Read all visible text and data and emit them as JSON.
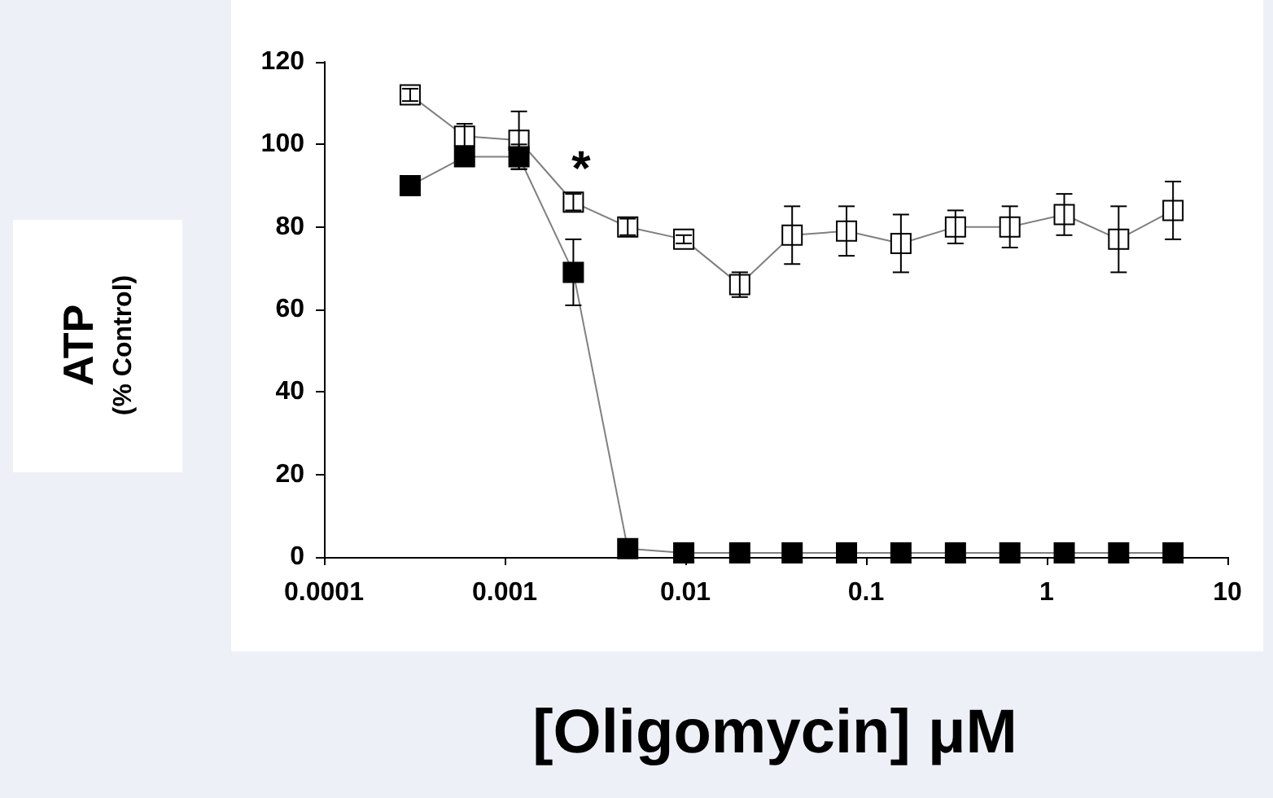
{
  "chart_data": {
    "type": "line",
    "xlabel": "[Oligomycin] μM",
    "ylabel": "ATP",
    "subtitle": "(% Control)",
    "log": "x",
    "xlim": [
      0.0001,
      10
    ],
    "xticks": [
      0.0001,
      0.001,
      0.01,
      0.1,
      1,
      10
    ],
    "ylim": [
      0,
      120
    ],
    "yticks": [
      0,
      20,
      40,
      60,
      80,
      100,
      120
    ],
    "grid": false,
    "marker": "square",
    "line_style": "solid",
    "annotations": [
      "*"
    ],
    "series": [
      {
        "color": "#ffffff",
        "x": [
          0.0003,
          0.0006,
          0.0012,
          0.0024,
          0.0048,
          0.0098,
          0.02,
          0.039,
          0.078,
          0.156,
          0.3125,
          0.625,
          1.25,
          2.5,
          5
        ],
        "values": [
          112,
          102,
          101,
          86,
          80,
          77,
          66,
          78,
          79,
          76,
          80,
          80,
          83,
          77,
          84
        ],
        "errors": [
          1.5,
          3,
          7,
          2,
          2,
          1,
          3,
          7,
          6,
          7,
          4,
          5,
          5,
          8,
          7
        ]
      },
      {
        "color": "#000000",
        "x": [
          0.0003,
          0.0006,
          0.0012,
          0.0024,
          0.0048,
          0.0098,
          0.02,
          0.039,
          0.078,
          0.156,
          0.3125,
          0.625,
          1.25,
          2.5,
          5
        ],
        "values": [
          90,
          97,
          97,
          69,
          2,
          1,
          1,
          1,
          1,
          1,
          1,
          1,
          1,
          1,
          1
        ],
        "errors": [
          null,
          null,
          3,
          8,
          null,
          null,
          null,
          null,
          null,
          null,
          null,
          null,
          null,
          null,
          null
        ]
      }
    ]
  }
}
